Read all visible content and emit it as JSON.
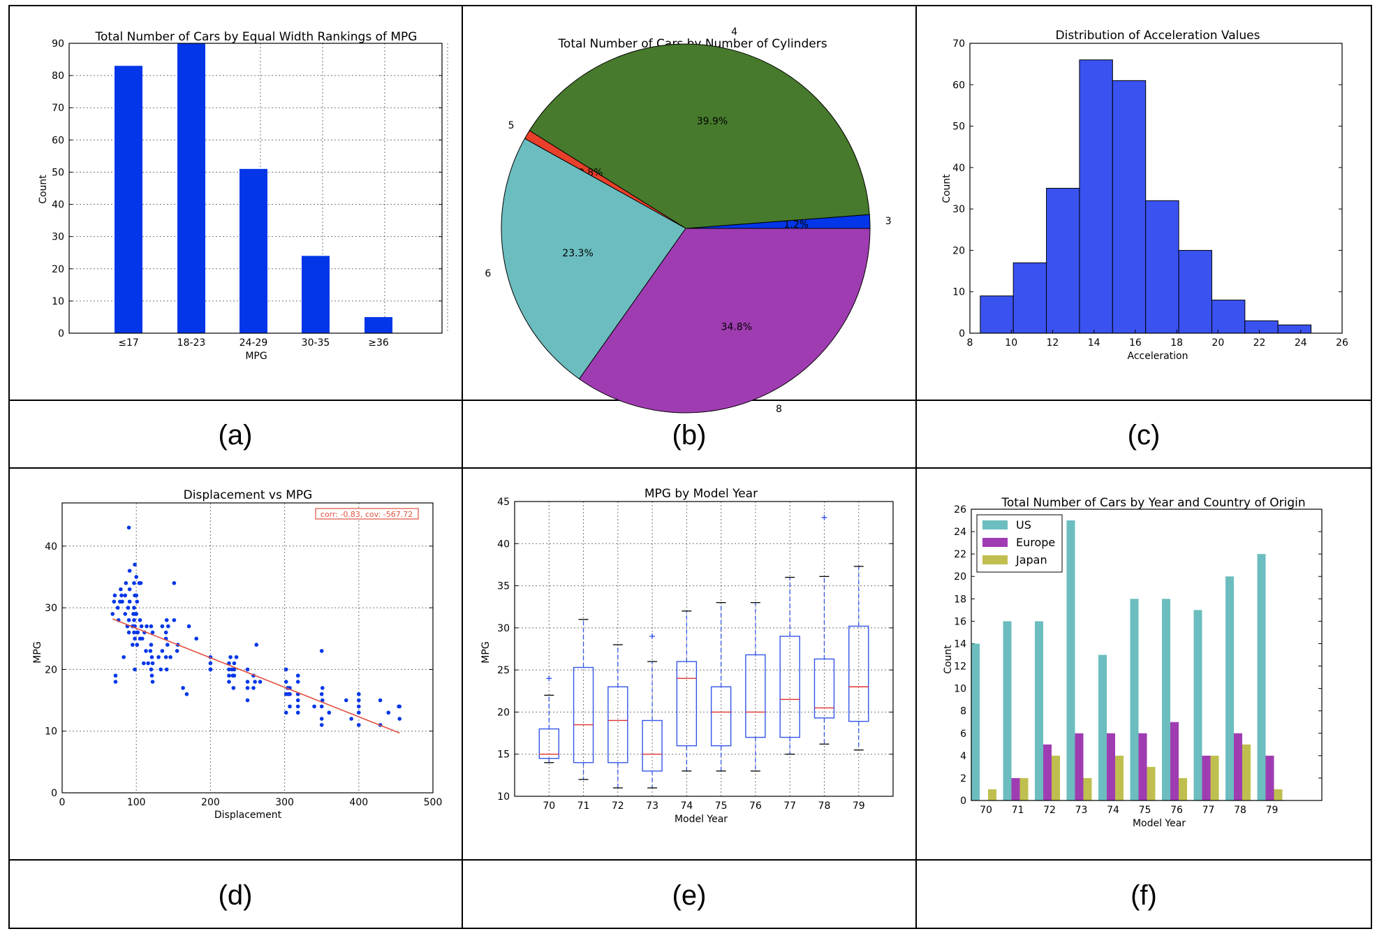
{
  "captions": [
    "(a)",
    "(b)",
    "(c)",
    "(d)",
    "(e)",
    "(f)"
  ],
  "colors": {
    "blue": "#0336e8",
    "green": "#477a2c",
    "red": "#e8402a",
    "teal": "#6cbdbf",
    "purple": "#a03cb2",
    "box": "#3355e8",
    "median": "#e03030",
    "fit": "#e05040",
    "bar_c": "#3a52f0",
    "us": "#6cbdbf",
    "europe": "#a03cb2",
    "japan": "#bfbf4f"
  },
  "chart_data": [
    {
      "type": "bar",
      "title": "Total Number of Cars by Equal Width Rankings of MPG",
      "xlabel": "MPG",
      "ylabel": "Count",
      "categories": [
        "≤17",
        "18-23",
        "24-29",
        "30-35",
        "≥36"
      ],
      "values": [
        83,
        90,
        51,
        24,
        5
      ],
      "ylim": [
        0,
        90
      ],
      "yticks": [
        0,
        10,
        20,
        30,
        40,
        50,
        60,
        70,
        80,
        90
      ],
      "grid": true
    },
    {
      "type": "pie",
      "title": "Total Number of Cars by Number of Cylinders",
      "labels": [
        "3",
        "4",
        "5",
        "6",
        "8"
      ],
      "values": [
        1.2,
        39.9,
        0.8,
        23.3,
        34.8
      ],
      "pct_labels": [
        "1.2%",
        "39.9%",
        "0.8%",
        "23.3%",
        "34.8%"
      ]
    },
    {
      "type": "bar",
      "subtype": "histogram",
      "title": "Distribution of Acceleration Values",
      "xlabel": "Acceleration",
      "ylabel": "Count",
      "bin_edges": [
        8.5,
        10.1,
        11.7,
        13.3,
        14.9,
        16.5,
        18.1,
        19.7,
        21.3,
        22.9,
        24.5
      ],
      "values": [
        9,
        17,
        35,
        66,
        61,
        32,
        20,
        8,
        3,
        2
      ],
      "xlim": [
        8,
        26
      ],
      "xticks": [
        8,
        10,
        12,
        14,
        16,
        18,
        20,
        22,
        24,
        26
      ],
      "ylim": [
        0,
        70
      ],
      "yticks": [
        0,
        10,
        20,
        30,
        40,
        50,
        60,
        70
      ],
      "grid": false
    },
    {
      "type": "scatter",
      "title": "Displacement vs MPG",
      "xlabel": "Displacement",
      "ylabel": "MPG",
      "annotation": "corr: -0.83, cov: -567.72",
      "xlim": [
        0,
        500
      ],
      "xticks": [
        0,
        100,
        200,
        300,
        400,
        500
      ],
      "ylim": [
        0,
        47
      ],
      "yticks": [
        0,
        10,
        20,
        30,
        40
      ],
      "fit_line": [
        [
          68,
          28.2
        ],
        [
          455,
          9.7
        ]
      ],
      "points": [
        [
          68,
          29
        ],
        [
          70,
          31
        ],
        [
          71,
          32
        ],
        [
          72,
          18
        ],
        [
          72,
          19
        ],
        [
          75,
          30
        ],
        [
          76,
          28
        ],
        [
          78,
          31
        ],
        [
          79,
          33
        ],
        [
          80,
          32
        ],
        [
          81,
          31
        ],
        [
          83,
          22
        ],
        [
          85,
          29
        ],
        [
          85,
          32
        ],
        [
          86,
          34
        ],
        [
          88,
          27
        ],
        [
          89,
          30
        ],
        [
          90,
          26
        ],
        [
          90,
          28
        ],
        [
          90,
          43
        ],
        [
          91,
          36
        ],
        [
          91,
          31
        ],
        [
          91,
          33
        ],
        [
          95,
          24
        ],
        [
          95,
          27
        ],
        [
          96,
          29
        ],
        [
          97,
          34
        ],
        [
          97,
          30
        ],
        [
          97,
          28
        ],
        [
          97,
          26
        ],
        [
          98,
          32
        ],
        [
          98,
          37
        ],
        [
          98,
          29
        ],
        [
          98,
          27
        ],
        [
          98,
          25
        ],
        [
          98,
          20
        ],
        [
          100,
          35
        ],
        [
          100,
          29
        ],
        [
          100,
          32
        ],
        [
          101,
          31
        ],
        [
          101,
          26
        ],
        [
          101,
          24
        ],
        [
          102,
          26
        ],
        [
          104,
          34
        ],
        [
          105,
          28
        ],
        [
          105,
          25
        ],
        [
          106,
          34
        ],
        [
          107,
          27
        ],
        [
          108,
          25
        ],
        [
          110,
          21
        ],
        [
          111,
          26
        ],
        [
          113,
          23
        ],
        [
          114,
          27
        ],
        [
          116,
          21
        ],
        [
          119,
          23
        ],
        [
          120,
          27
        ],
        [
          120,
          24
        ],
        [
          120,
          20
        ],
        [
          121,
          22
        ],
        [
          121,
          19
        ],
        [
          122,
          21
        ],
        [
          122,
          26
        ],
        [
          122,
          18
        ],
        [
          130,
          22
        ],
        [
          133,
          20
        ],
        [
          135,
          27
        ],
        [
          135,
          23
        ],
        [
          140,
          25
        ],
        [
          140,
          26
        ],
        [
          140,
          22
        ],
        [
          141,
          28
        ],
        [
          141,
          20
        ],
        [
          142,
          24
        ],
        [
          143,
          27
        ],
        [
          146,
          22
        ],
        [
          151,
          34
        ],
        [
          151,
          28
        ],
        [
          155,
          23
        ],
        [
          156,
          24
        ],
        [
          163,
          17
        ],
        [
          168,
          16
        ],
        [
          171,
          27
        ],
        [
          181,
          25
        ],
        [
          200,
          21
        ],
        [
          200,
          20
        ],
        [
          200,
          22
        ],
        [
          200,
          20
        ],
        [
          225,
          20
        ],
        [
          225,
          19
        ],
        [
          225,
          21
        ],
        [
          225,
          18
        ],
        [
          227,
          22
        ],
        [
          229,
          20
        ],
        [
          230,
          19
        ],
        [
          231,
          17
        ],
        [
          232,
          21
        ],
        [
          232,
          19
        ],
        [
          232,
          20
        ],
        [
          235,
          22
        ],
        [
          250,
          18
        ],
        [
          250,
          17
        ],
        [
          250,
          20
        ],
        [
          250,
          15
        ],
        [
          258,
          19
        ],
        [
          258,
          17
        ],
        [
          260,
          18
        ],
        [
          262,
          24
        ],
        [
          267,
          18
        ],
        [
          302,
          20
        ],
        [
          302,
          18
        ],
        [
          302,
          16
        ],
        [
          302,
          13
        ],
        [
          304,
          17
        ],
        [
          305,
          17
        ],
        [
          305,
          16
        ],
        [
          307,
          14
        ],
        [
          307,
          17
        ],
        [
          307,
          16
        ],
        [
          318,
          13
        ],
        [
          318,
          16
        ],
        [
          318,
          14
        ],
        [
          318,
          19
        ],
        [
          318,
          18
        ],
        [
          318,
          15
        ],
        [
          340,
          14
        ],
        [
          350,
          12
        ],
        [
          350,
          11
        ],
        [
          350,
          14
        ],
        [
          350,
          16
        ],
        [
          350,
          23
        ],
        [
          351,
          15
        ],
        [
          351,
          17
        ],
        [
          360,
          13
        ],
        [
          383,
          15
        ],
        [
          390,
          12
        ],
        [
          400,
          15
        ],
        [
          400,
          13
        ],
        [
          400,
          14
        ],
        [
          400,
          16
        ],
        [
          400,
          11
        ],
        [
          429,
          15
        ],
        [
          429,
          11
        ],
        [
          440,
          13
        ],
        [
          454,
          14
        ],
        [
          455,
          12
        ],
        [
          455,
          14
        ]
      ],
      "grid": true
    },
    {
      "type": "box",
      "title": "MPG by Model Year",
      "xlabel": "Model Year",
      "ylabel": "MPG",
      "categories": [
        "70",
        "71",
        "72",
        "73",
        "74",
        "75",
        "76",
        "77",
        "78",
        "79"
      ],
      "boxes": [
        {
          "min": 14,
          "q1": 14.5,
          "median": 15,
          "q3": 18,
          "max": 22,
          "outliers": [
            24
          ]
        },
        {
          "min": 12,
          "q1": 14,
          "median": 18.5,
          "q3": 25.3,
          "max": 31,
          "outliers": []
        },
        {
          "min": 11,
          "q1": 14,
          "median": 19,
          "q3": 23,
          "max": 28,
          "outliers": []
        },
        {
          "min": 11,
          "q1": 13,
          "median": 15,
          "q3": 19,
          "max": 26,
          "outliers": [
            29
          ]
        },
        {
          "min": 13,
          "q1": 16,
          "median": 24,
          "q3": 26,
          "max": 32,
          "outliers": []
        },
        {
          "min": 13,
          "q1": 16,
          "median": 20,
          "q3": 23,
          "max": 33,
          "outliers": []
        },
        {
          "min": 13,
          "q1": 17,
          "median": 20,
          "q3": 26.8,
          "max": 33,
          "outliers": []
        },
        {
          "min": 15,
          "q1": 17,
          "median": 21.5,
          "q3": 29,
          "max": 36,
          "outliers": []
        },
        {
          "min": 16.2,
          "q1": 19.3,
          "median": 20.5,
          "q3": 26.3,
          "max": 36.1,
          "outliers": [
            43.1
          ]
        },
        {
          "min": 15.5,
          "q1": 18.9,
          "median": 23,
          "q3": 30.2,
          "max": 37.3,
          "outliers": []
        }
      ],
      "ylim": [
        10,
        45
      ],
      "yticks": [
        10,
        15,
        20,
        25,
        30,
        35,
        40,
        45
      ],
      "grid": true
    },
    {
      "type": "bar",
      "subtype": "grouped",
      "title": "Total Number of Cars by Year and Country of Origin",
      "xlabel": "Model Year",
      "ylabel": "Count",
      "categories": [
        "70",
        "71",
        "72",
        "73",
        "74",
        "75",
        "76",
        "77",
        "78",
        "79"
      ],
      "series": [
        {
          "name": "US",
          "values": [
            14,
            16,
            16,
            25,
            13,
            18,
            18,
            17,
            20,
            22
          ]
        },
        {
          "name": "Europe",
          "values": [
            0,
            2,
            5,
            6,
            6,
            6,
            7,
            4,
            6,
            4
          ]
        },
        {
          "name": "Japan",
          "values": [
            1,
            2,
            4,
            2,
            4,
            3,
            2,
            4,
            5,
            1
          ]
        }
      ],
      "ylim": [
        0,
        26
      ],
      "yticks": [
        0,
        2,
        4,
        6,
        8,
        10,
        12,
        14,
        16,
        18,
        20,
        22,
        24,
        26
      ],
      "legend": "top-left",
      "grid": false
    }
  ]
}
